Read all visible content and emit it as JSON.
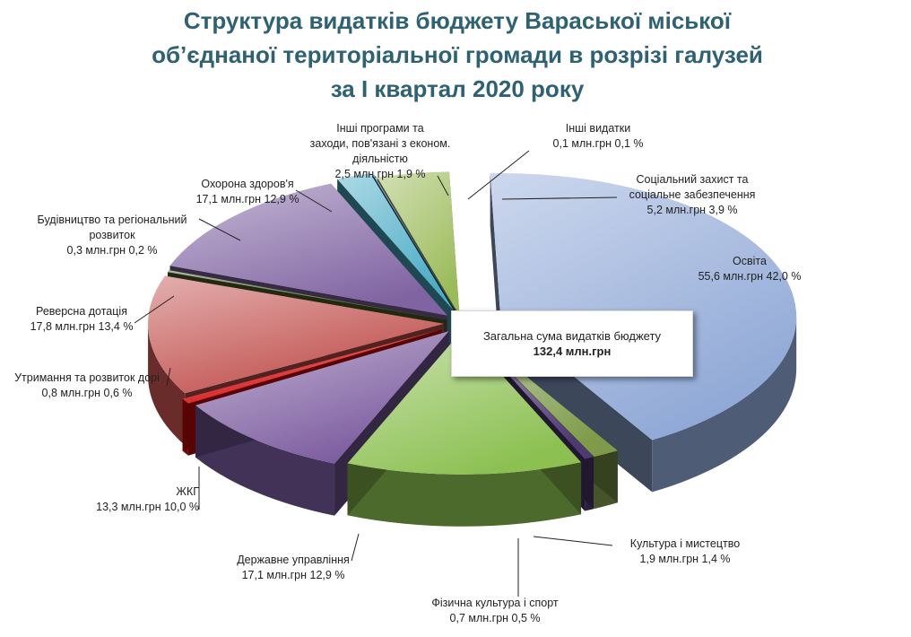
{
  "title": {
    "line1": "Структура видатків бюджету Вараської міської",
    "line2": "об’єднаної територіальної громади в розрізі галузей",
    "line3": "за І квартал 2020 року"
  },
  "total": {
    "label": "Загальна сума видатків бюджету",
    "value": "132,4 млн.грн"
  },
  "chart_data": {
    "type": "pie",
    "style": "3d-exploded",
    "title": "Структура видатків бюджету Вараської міської об’єднаної територіальної громади в розрізі галузей за І квартал 2020 року",
    "unit": "млн.грн",
    "total": 132.4,
    "slices": [
      {
        "name": "Освіта",
        "value": 55.6,
        "percent": 42.0,
        "value_label": "55,6 млн.грн   42,0 %",
        "color": "#8fa8d6"
      },
      {
        "name": "Культура і мистецтво",
        "value": 1.9,
        "percent": 1.4,
        "value_label": "1,9 млн.грн   1,4 %",
        "color": "#7f9b4a"
      },
      {
        "name": "Фізична культура і спорт",
        "value": 0.7,
        "percent": 0.5,
        "value_label": "0,7 млн.грн   0,5 %",
        "color": "#4e3a73"
      },
      {
        "name": "Державне управління",
        "value": 17.1,
        "percent": 12.9,
        "value_label": "17,1 млн.грн   12,9 %",
        "color": "#8cc051"
      },
      {
        "name": "ЖКГ",
        "value": 13.3,
        "percent": 10.0,
        "value_label": "13,3 млн.грн   10,0 %",
        "color": "#7a5a9e"
      },
      {
        "name": "Утримання та розвиток доріг",
        "value": 0.8,
        "percent": 0.6,
        "value_label": "0,8 млн.грн   0,6 %",
        "color": "#d10a0a"
      },
      {
        "name": "Реверсна дотація",
        "value": 17.8,
        "percent": 13.4,
        "value_label": "17,8 млн.грн   13,4 %",
        "color": "#c0504d"
      },
      {
        "name": "Будівництво та регіональний розвиток",
        "value": 0.3,
        "percent": 0.2,
        "value_label": "0,3 млн.грн   0,2 %",
        "color": "#4f6228"
      },
      {
        "name": "Охорона здоров'я",
        "value": 17.1,
        "percent": 12.9,
        "value_label": "17,1 млн.грн   12,9 %",
        "color": "#8064a2"
      },
      {
        "name": "Інші програми та заходи, пов'язані з економ. діяльністю",
        "value": 2.5,
        "percent": 1.9,
        "value_label": "2,5 млн.грн   1,9 %",
        "color": "#4bacc6"
      },
      {
        "name": "Інші видатки",
        "value": 0.1,
        "percent": 0.1,
        "value_label": "0,1 млн.грн 0,1 %",
        "color": "#1f497d"
      },
      {
        "name": "Соціальний захист та соціальне забезпечення",
        "value": 5.2,
        "percent": 3.9,
        "value_label": "5,2  млн.грн 3,9 %",
        "color": "#9bbb59"
      }
    ],
    "labels": [
      {
        "lines": [
          "Освіта"
        ],
        "value": "55,6 млн.грн   42,0 %"
      },
      {
        "lines": [
          "Культура і мистецтво"
        ],
        "value": "1,9 млн.грн   1,4 %"
      },
      {
        "lines": [
          "Фізична культура і спорт"
        ],
        "value": "0,7 млн.грн   0,5 %"
      },
      {
        "lines": [
          "Державне управління"
        ],
        "value": "17,1 млн.грн   12,9 %"
      },
      {
        "lines": [
          "ЖКГ"
        ],
        "value": "13,3 млн.грн   10,0 %"
      },
      {
        "lines": [
          "Утримання та розвиток дорі"
        ],
        "value": "0,8 млн.грн   0,6 %"
      },
      {
        "lines": [
          "Реверсна дотація"
        ],
        "value": "17,8 млн.грн   13,4 %"
      },
      {
        "lines": [
          "Будівництво та регіональний",
          "розвиток"
        ],
        "value": "0,3 млн.грн   0,2 %"
      },
      {
        "lines": [
          "Охорона здоров'я"
        ],
        "value": "17,1 млн.грн   12,9 %"
      },
      {
        "lines": [
          "Інші програми та",
          "заходи, пов'язані з економ.",
          "діяльністю"
        ],
        "value": "2,5 млн.грн   1,9 %"
      },
      {
        "lines": [
          "Інші видатки"
        ],
        "value": "0,1 млн.грн 0,1 %"
      },
      {
        "lines": [
          "Соціальний захист та",
          "соціальне забезпечення"
        ],
        "value": "5,2  млн.грн 3,9 %"
      }
    ]
  }
}
